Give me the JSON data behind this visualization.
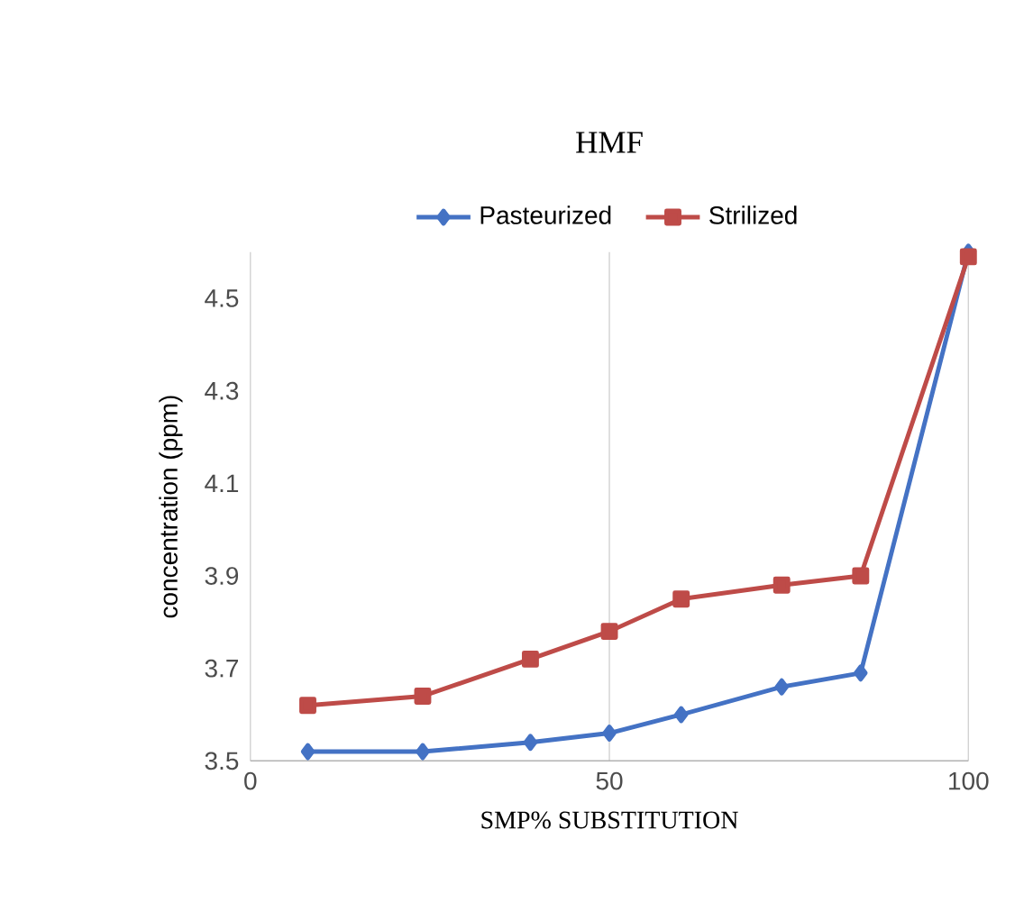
{
  "chart_data": {
    "type": "line",
    "title": "HMF",
    "xlabel": "SMP% SUBSTITUTION",
    "ylabel": "concentration (ppm)",
    "xlim": [
      0,
      100
    ],
    "xticks": [
      0,
      50,
      100
    ],
    "ylim": [
      3.5,
      4.6
    ],
    "yticks": [
      3.5,
      3.7,
      3.9,
      4.1,
      4.3,
      4.5
    ],
    "grid": "x",
    "legend": "top",
    "series": [
      {
        "name": "Pasteurized",
        "color": "#4472c4",
        "marker": "diamond",
        "x": [
          8,
          24,
          39,
          50,
          60,
          74,
          85,
          100
        ],
        "values": [
          3.52,
          3.52,
          3.54,
          3.56,
          3.6,
          3.66,
          3.69,
          4.6
        ]
      },
      {
        "name": "Strilized",
        "color": "#be4b48",
        "marker": "square",
        "x": [
          8,
          24,
          39,
          50,
          60,
          74,
          85,
          100
        ],
        "values": [
          3.62,
          3.64,
          3.72,
          3.78,
          3.85,
          3.88,
          3.9,
          4.59
        ]
      }
    ]
  }
}
